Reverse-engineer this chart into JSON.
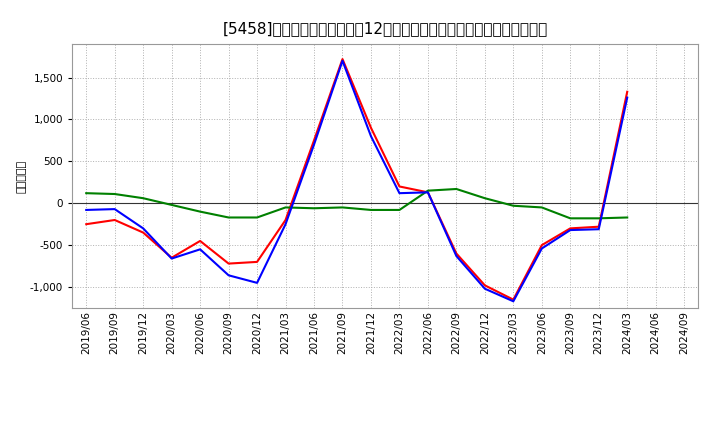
{
  "title": "[5458]　キャッシュフローの12か月移動合計の対前年同期増減額の推移",
  "ylabel": "（百万円）",
  "ylim": [
    -1250,
    1900
  ],
  "yticks": [
    -1000,
    -500,
    0,
    500,
    1000,
    1500
  ],
  "background_color": "#ffffff",
  "plot_bg_color": "#ffffff",
  "grid_color": "#b0b0b0",
  "dates": [
    "2019/06",
    "2019/09",
    "2019/12",
    "2020/03",
    "2020/06",
    "2020/09",
    "2020/12",
    "2021/03",
    "2021/06",
    "2021/09",
    "2021/12",
    "2022/03",
    "2022/06",
    "2022/09",
    "2022/12",
    "2023/03",
    "2023/06",
    "2023/09",
    "2023/12",
    "2024/03",
    "2024/06",
    "2024/09"
  ],
  "eigyo_cf": [
    -250,
    -200,
    -350,
    -650,
    -450,
    -720,
    -700,
    -200,
    750,
    1720,
    900,
    200,
    130,
    -600,
    -980,
    -1150,
    -500,
    -300,
    -280,
    1330,
    null,
    null
  ],
  "toshi_cf": [
    120,
    110,
    60,
    -20,
    -100,
    -170,
    -170,
    -50,
    -60,
    -50,
    -80,
    -80,
    150,
    170,
    60,
    -30,
    -50,
    -180,
    -180,
    -170,
    null,
    null
  ],
  "free_cf": [
    -80,
    -70,
    -300,
    -660,
    -550,
    -860,
    -950,
    -250,
    700,
    1700,
    800,
    120,
    130,
    -630,
    -1020,
    -1170,
    -540,
    -320,
    -310,
    1260,
    null,
    null
  ],
  "eigyo_color": "#ff0000",
  "toshi_color": "#008000",
  "free_color": "#0000ff",
  "line_width": 1.5,
  "title_fontsize": 11,
  "axis_fontsize": 7.5,
  "ylabel_fontsize": 8
}
